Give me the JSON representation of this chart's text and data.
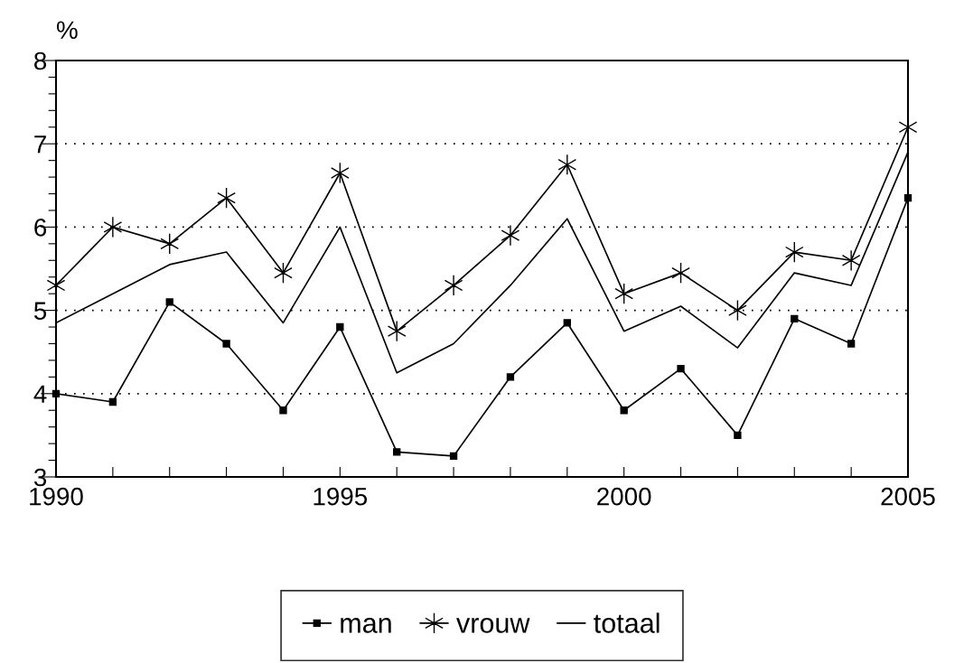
{
  "chart_data": {
    "type": "line",
    "ylabel": "%",
    "x": [
      1990,
      1991,
      1992,
      1993,
      1994,
      1995,
      1996,
      1997,
      1998,
      1999,
      2000,
      2001,
      2002,
      2003,
      2004,
      2005
    ],
    "series": [
      {
        "name": "man",
        "color": "#000000",
        "marker": "square",
        "values": [
          4.0,
          3.9,
          5.1,
          4.6,
          3.8,
          4.8,
          3.3,
          3.25,
          4.2,
          4.85,
          3.8,
          4.3,
          3.5,
          4.9,
          4.6,
          6.35
        ]
      },
      {
        "name": "vrouw",
        "color": "#000000",
        "marker": "cross",
        "values": [
          5.3,
          6.0,
          5.8,
          6.35,
          5.45,
          6.65,
          4.75,
          5.3,
          5.9,
          6.75,
          5.2,
          5.45,
          5.0,
          5.7,
          5.6,
          7.2
        ]
      },
      {
        "name": "totaal",
        "color": "#000000",
        "marker": "none",
        "values": [
          4.85,
          5.2,
          5.55,
          5.7,
          4.85,
          6.0,
          4.25,
          4.6,
          5.3,
          6.1,
          4.75,
          5.05,
          4.55,
          5.45,
          5.3,
          6.9
        ]
      }
    ],
    "xlim": [
      1990,
      2005
    ],
    "xticks": [
      1990,
      {
        "value": 1991,
        "label": null
      },
      {
        "value": 1992,
        "label": null
      },
      {
        "value": 1993,
        "label": null
      },
      {
        "value": 1994,
        "label": null
      },
      1995,
      {
        "value": 1996,
        "label": null
      },
      {
        "value": 1997,
        "label": null
      },
      {
        "value": 1998,
        "label": null
      },
      {
        "value": 1999,
        "label": null
      },
      2000,
      {
        "value": 2001,
        "label": null
      },
      {
        "value": 2002,
        "label": null
      },
      {
        "value": 2003,
        "label": null
      },
      {
        "value": 2004,
        "label": null
      },
      2005
    ],
    "ylim": [
      3,
      8
    ],
    "yticks": [
      3,
      {
        "value": 3.2,
        "label": null
      },
      {
        "value": 3.4,
        "label": null
      },
      {
        "value": 3.6,
        "label": null
      },
      {
        "value": 3.8,
        "label": null
      },
      4,
      {
        "value": 4.2,
        "label": null
      },
      {
        "value": 4.4,
        "label": null
      },
      {
        "value": 4.6,
        "label": null
      },
      {
        "value": 4.8,
        "label": null
      },
      5,
      {
        "value": 5.2,
        "label": null
      },
      {
        "value": 5.4,
        "label": null
      },
      {
        "value": 5.6,
        "label": null
      },
      {
        "value": 5.8,
        "label": null
      },
      6,
      {
        "value": 6.2,
        "label": null
      },
      {
        "value": 6.4,
        "label": null
      },
      {
        "value": 6.6,
        "label": null
      },
      {
        "value": 6.8,
        "label": null
      },
      7,
      {
        "value": 7.2,
        "label": null
      },
      {
        "value": 7.4,
        "label": null
      },
      {
        "value": 7.6,
        "label": null
      },
      {
        "value": 7.8,
        "label": null
      },
      8
    ],
    "grid": "y",
    "legend": "bottom",
    "line_style": "solid"
  }
}
